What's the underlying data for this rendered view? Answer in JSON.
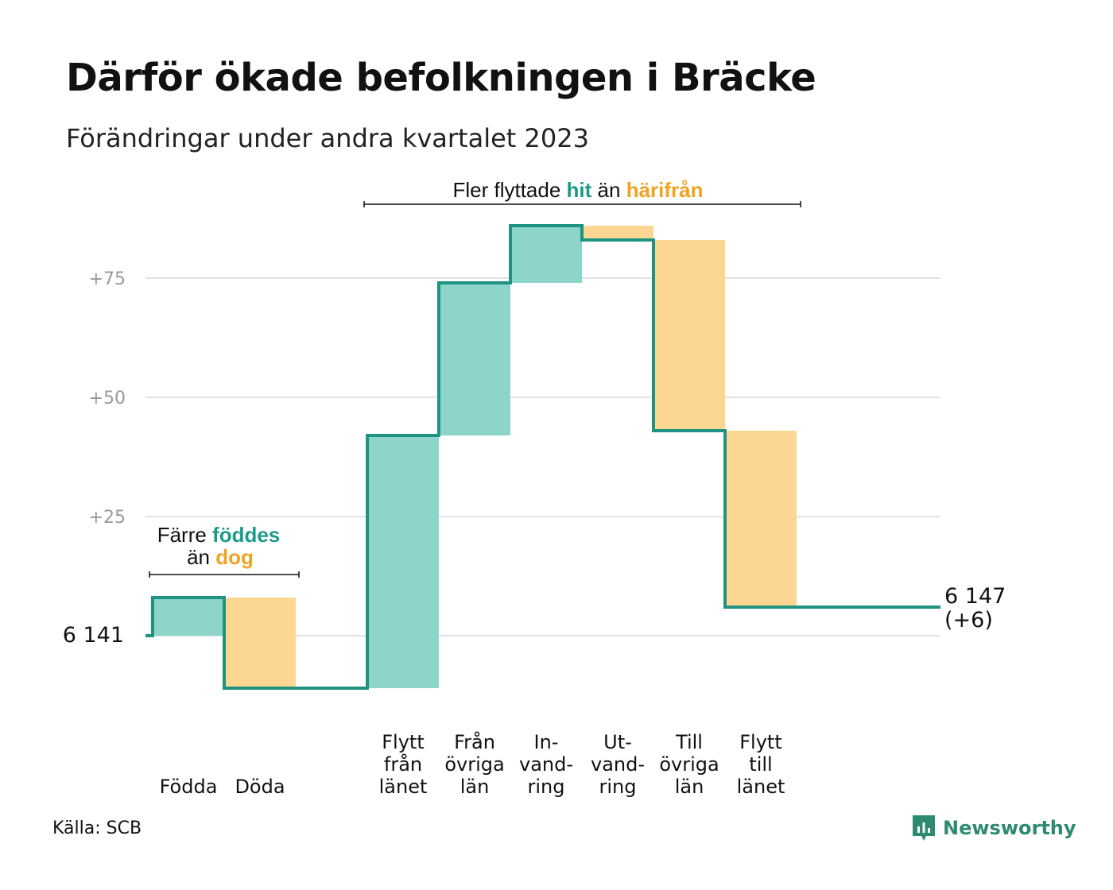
{
  "title": "Därför ökade befolkningen i Bräcke",
  "subtitle": "Förändringar under andra kvartalet 2023",
  "source": "Källa: SCB",
  "brand": "Newsworthy",
  "colors": {
    "in": "#8dd5cb",
    "out": "#fbd791",
    "line": "#1e9382",
    "in_text": "#1a9b8a",
    "out_text": "#f0a323"
  },
  "chart_data": {
    "type": "waterfall",
    "baseline": 6141,
    "baseline_label": "6  141",
    "y_ticks": [
      {
        "value": 25,
        "label": "+25"
      },
      {
        "value": 50,
        "label": "+50"
      },
      {
        "value": 75,
        "label": "+75"
      }
    ],
    "ylim": [
      -13,
      90
    ],
    "steps": [
      {
        "label": [
          "Födda"
        ],
        "change": 8,
        "direction": "in"
      },
      {
        "label": [
          "Döda"
        ],
        "change": -19,
        "direction": "out"
      },
      {
        "label": [],
        "change": 0,
        "direction": "none"
      },
      {
        "label": [
          "Flytt",
          "från",
          "länet"
        ],
        "change": 53,
        "direction": "in"
      },
      {
        "label": [
          "Från",
          "övriga",
          "län"
        ],
        "change": 32,
        "direction": "in"
      },
      {
        "label": [
          "In-",
          "vand-",
          "ring"
        ],
        "change": 12,
        "direction": "in"
      },
      {
        "label": [
          "Ut-",
          "vand-",
          "ring"
        ],
        "change": -3,
        "direction": "out"
      },
      {
        "label": [
          "Till",
          "övriga",
          "län"
        ],
        "change": -40,
        "direction": "out"
      },
      {
        "label": [
          "Flytt",
          "till",
          "länet"
        ],
        "change": -37,
        "direction": "out"
      }
    ],
    "end_value": 6147,
    "end_label": [
      "6 147",
      "(+6)"
    ],
    "annotations": {
      "natural": {
        "line1_prefix": "Färre",
        "line1_highlight": "föddes",
        "line2_prefix": "än",
        "line2_highlight": "dog"
      },
      "migration": {
        "prefix": "Fler flyttade",
        "highlight_in": "hit",
        "middle": "än",
        "highlight_out": "härifrån"
      }
    }
  }
}
